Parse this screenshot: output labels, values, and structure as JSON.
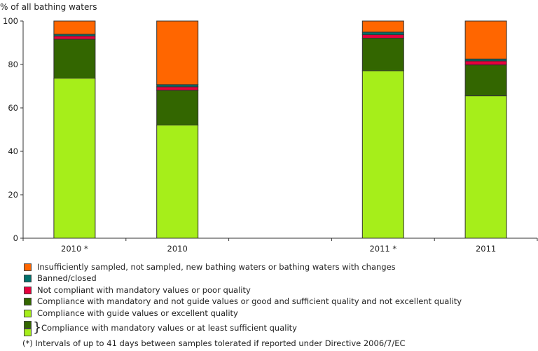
{
  "chart_data": {
    "type": "bar",
    "stacked": true,
    "ylabel": "% of all bathing waters",
    "ylim": [
      0,
      100
    ],
    "yticks": [
      "0",
      "20",
      "40",
      "60",
      "80",
      "100"
    ],
    "categories": [
      "2010 *",
      "2010",
      "",
      "2011 *",
      "2011"
    ],
    "series": [
      {
        "name": "Compliance with guide values or excellent quality",
        "color": "#A6EE1A",
        "values": [
          73.7,
          52.1,
          null,
          77.1,
          65.6
        ]
      },
      {
        "name": "Compliance with mandatory and not guide values or good and sufficient quality and not excellent quality",
        "color": "#336600",
        "values": [
          17.9,
          16.0,
          null,
          15.0,
          14.2
        ]
      },
      {
        "name": "Not compliant with mandatory values or poor quality",
        "color": "#E6003C",
        "values": [
          1.5,
          1.6,
          null,
          1.6,
          1.8
        ]
      },
      {
        "name": "Banned/closed",
        "color": "#00706B",
        "values": [
          0.8,
          1.0,
          null,
          1.2,
          0.9
        ]
      },
      {
        "name": "Insufficiently sampled, not sampled, new bathing waters or bathing waters with changes",
        "color": "#FF6600",
        "values": [
          6.1,
          29.3,
          null,
          5.1,
          17.5
        ]
      }
    ],
    "legend": [
      {
        "label": "Insufficiently sampled, not sampled, new bathing waters or bathing waters with changes",
        "color": "#FF6600"
      },
      {
        "label": "Banned/closed",
        "color": "#00706B"
      },
      {
        "label": "Not compliant with mandatory values or poor quality",
        "color": "#E6003C"
      },
      {
        "label": "Compliance with mandatory and not guide values or good and sufficient quality and not excellent quality",
        "color": "#336600"
      },
      {
        "label": "Compliance with guide values or excellent quality",
        "color": "#A6EE1A"
      }
    ],
    "combined_legend": {
      "brace": "}",
      "label": "Compliance with mandatory values or at least sufficient quality"
    },
    "footnote": "(*) Intervals of up to 41 days between samples tolerated if reported under Directive 2006/7/EC",
    "grid": false,
    "legend_position": "bottom-left"
  }
}
